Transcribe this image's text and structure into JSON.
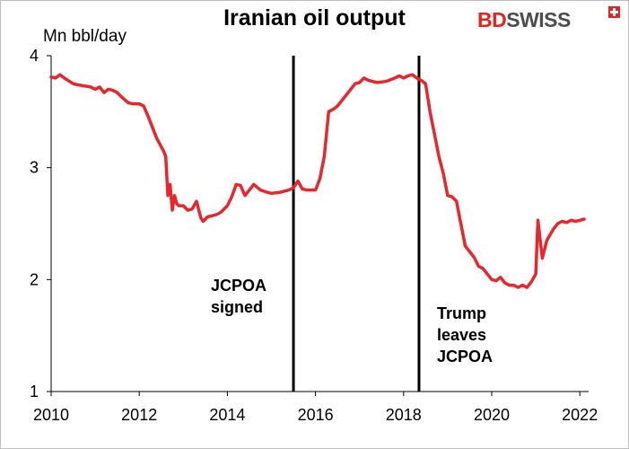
{
  "chart_data": {
    "type": "line",
    "title": "Iranian oil output",
    "ylabel": "Mn bbl/day",
    "xlabel": "",
    "brand": {
      "part1": "BD",
      "part2": "SWISS"
    },
    "colors": {
      "line": "#e8262b",
      "events": "#000000",
      "brand_red": "#e52421",
      "brand_gray": "#4d4d4d"
    },
    "xlim": [
      2010,
      2022.2
    ],
    "ylim": [
      1,
      4
    ],
    "x_ticks": [
      "2010",
      "2012",
      "2014",
      "2016",
      "2018",
      "2020",
      "2022"
    ],
    "y_ticks": [
      "1",
      "2",
      "3",
      "4"
    ],
    "grid": false,
    "legend": "none",
    "events": [
      {
        "x": 2015.5,
        "label_lines": [
          "JCPOA",
          "signed"
        ]
      },
      {
        "x": 2018.35,
        "label_lines": [
          "Trump",
          "leaves",
          "JCPOA"
        ]
      }
    ],
    "series": [
      {
        "x": [
          2010.0,
          2010.1,
          2010.2,
          2010.3,
          2010.5,
          2010.6,
          2010.75,
          2010.9,
          2011.0,
          2011.1,
          2011.2,
          2011.3,
          2011.4,
          2011.5,
          2011.6,
          2011.75,
          2011.85,
          2012.0,
          2012.1,
          2012.2,
          2012.3,
          2012.4,
          2012.55,
          2012.6,
          2012.65,
          2012.7,
          2012.75,
          2012.8,
          2012.85,
          2012.9,
          2013.0,
          2013.1,
          2013.2,
          2013.3,
          2013.4,
          2013.45,
          2013.55,
          2013.65,
          2013.75,
          2013.85,
          2013.9,
          2014.0,
          2014.1,
          2014.2,
          2014.3,
          2014.4,
          2014.5,
          2014.6,
          2014.75,
          2014.9,
          2015.0,
          2015.2,
          2015.4,
          2015.5,
          2015.6,
          2015.7,
          2015.8,
          2016.0,
          2016.1,
          2016.2,
          2016.3,
          2016.4,
          2016.5,
          2016.6,
          2016.7,
          2016.8,
          2016.9,
          2017.0,
          2017.1,
          2017.2,
          2017.4,
          2017.6,
          2017.8,
          2017.9,
          2018.0,
          2018.1,
          2018.2,
          2018.3,
          2018.4,
          2018.5,
          2018.6,
          2018.7,
          2018.8,
          2018.9,
          2019.0,
          2019.1,
          2019.2,
          2019.3,
          2019.4,
          2019.5,
          2019.6,
          2019.7,
          2019.8,
          2019.9,
          2020.0,
          2020.1,
          2020.2,
          2020.3,
          2020.4,
          2020.5,
          2020.6,
          2020.7,
          2020.8,
          2020.9,
          2021.0,
          2021.05,
          2021.15,
          2021.25,
          2021.4,
          2021.5,
          2021.6,
          2021.7,
          2021.8,
          2021.9,
          2022.0,
          2022.1
        ],
        "values": [
          3.81,
          3.8,
          3.83,
          3.8,
          3.75,
          3.74,
          3.73,
          3.72,
          3.7,
          3.72,
          3.67,
          3.7,
          3.69,
          3.67,
          3.63,
          3.58,
          3.57,
          3.57,
          3.55,
          3.46,
          3.36,
          3.26,
          3.15,
          3.1,
          2.75,
          2.85,
          2.62,
          2.75,
          2.68,
          2.66,
          2.66,
          2.62,
          2.63,
          2.7,
          2.55,
          2.52,
          2.56,
          2.57,
          2.58,
          2.6,
          2.62,
          2.66,
          2.74,
          2.85,
          2.84,
          2.75,
          2.8,
          2.85,
          2.8,
          2.78,
          2.77,
          2.78,
          2.8,
          2.82,
          2.88,
          2.81,
          2.8,
          2.8,
          2.9,
          3.1,
          3.5,
          3.52,
          3.55,
          3.6,
          3.65,
          3.7,
          3.75,
          3.76,
          3.8,
          3.78,
          3.76,
          3.77,
          3.8,
          3.82,
          3.8,
          3.82,
          3.83,
          3.8,
          3.78,
          3.75,
          3.5,
          3.3,
          3.1,
          2.95,
          2.75,
          2.74,
          2.7,
          2.5,
          2.3,
          2.25,
          2.2,
          2.12,
          2.1,
          2.05,
          2.0,
          1.99,
          2.02,
          1.97,
          1.95,
          1.95,
          1.93,
          1.95,
          1.93,
          1.98,
          2.05,
          2.53,
          2.19,
          2.35,
          2.45,
          2.5,
          2.52,
          2.51,
          2.53,
          2.52,
          2.53,
          2.54
        ]
      }
    ]
  }
}
